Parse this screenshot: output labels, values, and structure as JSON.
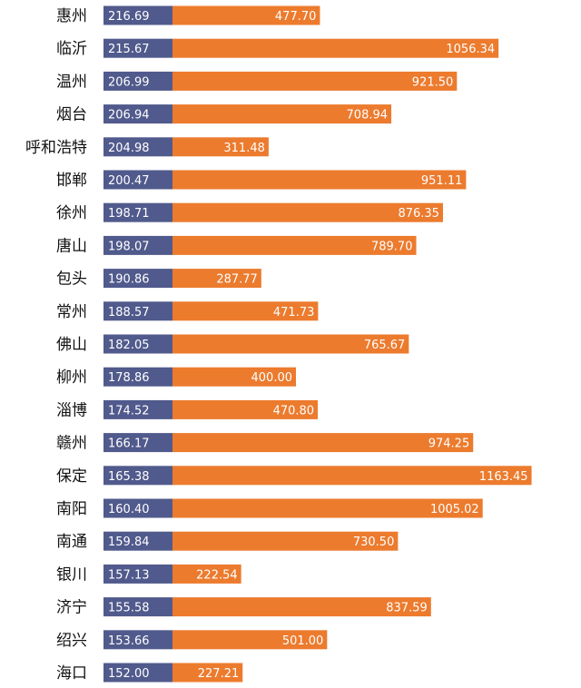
{
  "chart_data": {
    "type": "bar",
    "orientation": "horizontal",
    "stacked": true,
    "categories": [
      "惠州",
      "临沂",
      "温州",
      "烟台",
      "呼和浩特",
      "邯郸",
      "徐州",
      "唐山",
      "包头",
      "常州",
      "佛山",
      "柳州",
      "淄博",
      "赣州",
      "保定",
      "南阳",
      "南通",
      "银川",
      "济宁",
      "绍兴",
      "海口"
    ],
    "series": [
      {
        "color": "#515a8c",
        "values": [
          216.69,
          215.67,
          206.99,
          206.94,
          204.98,
          200.47,
          198.71,
          198.07,
          190.86,
          188.57,
          182.05,
          178.86,
          174.52,
          166.17,
          165.38,
          160.4,
          159.84,
          157.13,
          155.58,
          153.66,
          152.0
        ]
      },
      {
        "color": "#ec7b2e",
        "values": [
          477.7,
          1056.34,
          921.5,
          708.94,
          311.48,
          951.11,
          876.35,
          789.7,
          287.77,
          471.73,
          765.67,
          400.0,
          470.8,
          974.25,
          1163.45,
          1005.02,
          730.5,
          222.54,
          837.59,
          501.0,
          227.21
        ]
      }
    ],
    "value_labels_series1": [
      "216.69",
      "215.67",
      "206.99",
      "206.94",
      "204.98",
      "200.47",
      "198.71",
      "198.07",
      "190.86",
      "188.57",
      "182.05",
      "178.86",
      "174.52",
      "166.17",
      "165.38",
      "160.40",
      "159.84",
      "157.13",
      "155.58",
      "153.66",
      "152.00"
    ],
    "value_labels_series2": [
      "477.70",
      "1056.34",
      "921.50",
      "708.94",
      "311.48",
      "951.11",
      "876.35",
      "789.70",
      "287.77",
      "471.73",
      "765.67",
      "400.00",
      "470.80",
      "974.25",
      "1163.45",
      "1005.02",
      "730.50",
      "222.54",
      "837.59",
      "501.00",
      "227.21"
    ],
    "title": "",
    "xlabel": "",
    "ylabel": "",
    "grid": false,
    "legend": "none"
  }
}
